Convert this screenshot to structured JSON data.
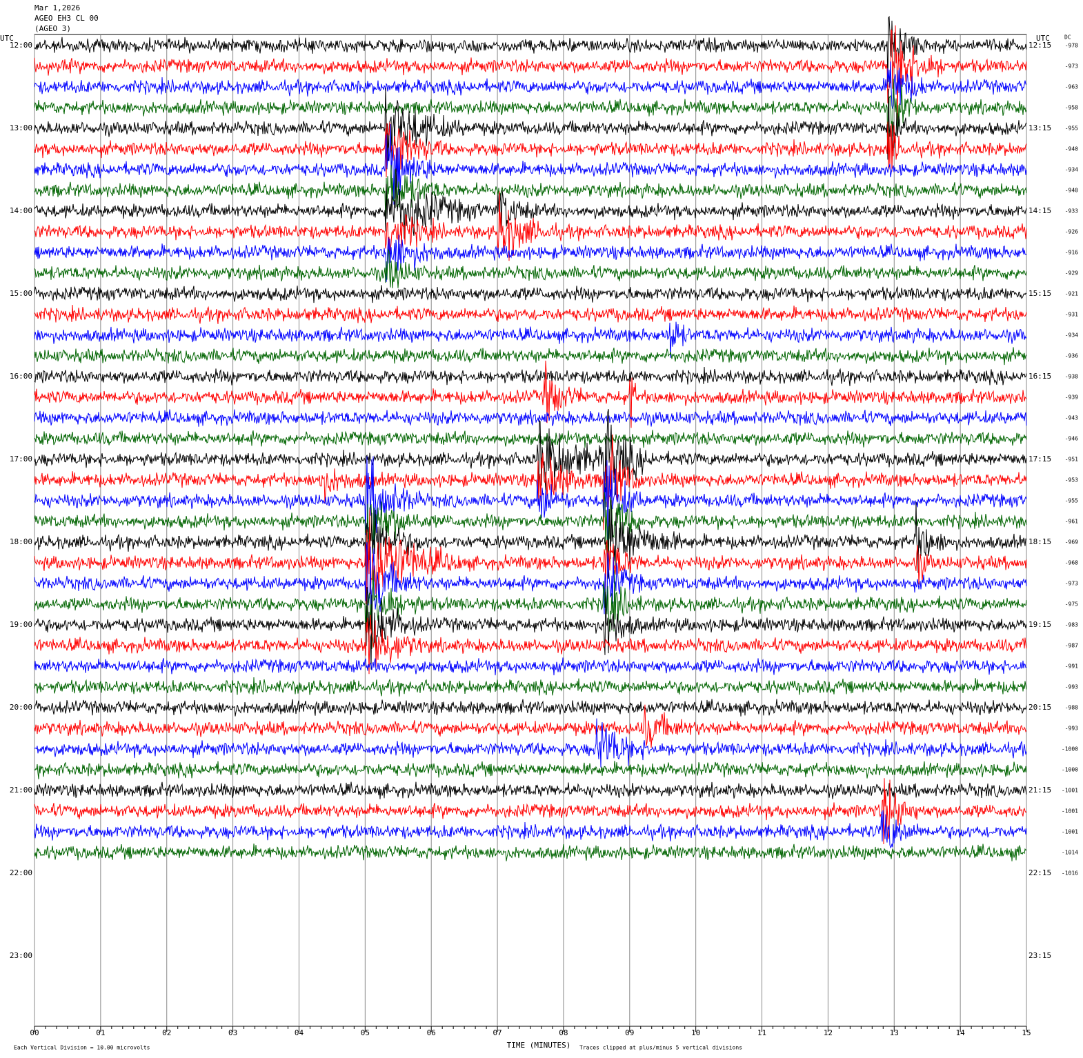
{
  "chart_data": {
    "type": "helicorder",
    "title": [
      "Mar 1,2026",
      "AGEO EH3 CL 00",
      "(AGEO 3)"
    ],
    "left_axis_title": "UTC",
    "right_axis_title": "UTC",
    "dc_title": "DC",
    "left_labels": [
      "12:00",
      "13:00",
      "14:00",
      "15:00",
      "16:00",
      "17:00",
      "18:00",
      "19:00",
      "20:00",
      "21:00",
      "22:00",
      "23:00"
    ],
    "right_labels": [
      "12:15",
      "13:15",
      "14:15",
      "15:15",
      "16:15",
      "17:15",
      "18:15",
      "19:15",
      "20:15",
      "21:15",
      "22:15",
      "23:15"
    ],
    "dc_offsets": [
      -978,
      -973,
      -963,
      -958,
      -955,
      -940,
      -934,
      -940,
      -933,
      -926,
      -916,
      -929,
      -921,
      -931,
      -934,
      -936,
      -938,
      -939,
      -943,
      -946,
      -951,
      -953,
      -955,
      -961,
      -969,
      -968,
      -973,
      -975,
      -983,
      -987,
      -991,
      -993,
      -988,
      -993,
      -1000,
      -1000,
      -1001,
      -1001,
      -1001,
      -1014,
      -1016
    ],
    "colors": [
      "#000000",
      "#ff0000",
      "#0000ff",
      "#006400"
    ],
    "xlabel": "TIME (MINUTES)",
    "xlim": [
      0,
      15
    ],
    "xticks": [
      {
        "value": 0,
        "label": "00"
      },
      {
        "value": 1,
        "label": "01"
      },
      {
        "value": 2,
        "label": "02"
      },
      {
        "value": 3,
        "label": "03"
      },
      {
        "value": 4,
        "label": "04"
      },
      {
        "value": 5,
        "label": "05"
      },
      {
        "value": 6,
        "label": "06"
      },
      {
        "value": 7,
        "label": "07"
      },
      {
        "value": 8,
        "label": "08"
      },
      {
        "value": 9,
        "label": "09"
      },
      {
        "value": 10,
        "label": "10"
      },
      {
        "value": 11,
        "label": "11"
      },
      {
        "value": 12,
        "label": "12"
      },
      {
        "value": 13,
        "label": "13"
      },
      {
        "value": 14,
        "label": "14"
      },
      {
        "value": 15,
        "label": "15"
      }
    ],
    "footer_left": "Each Vertical Division =   10.00 microvolts",
    "footer_right": "Traces clipped at plus/minus 5 vertical divisions",
    "grid": true
  }
}
